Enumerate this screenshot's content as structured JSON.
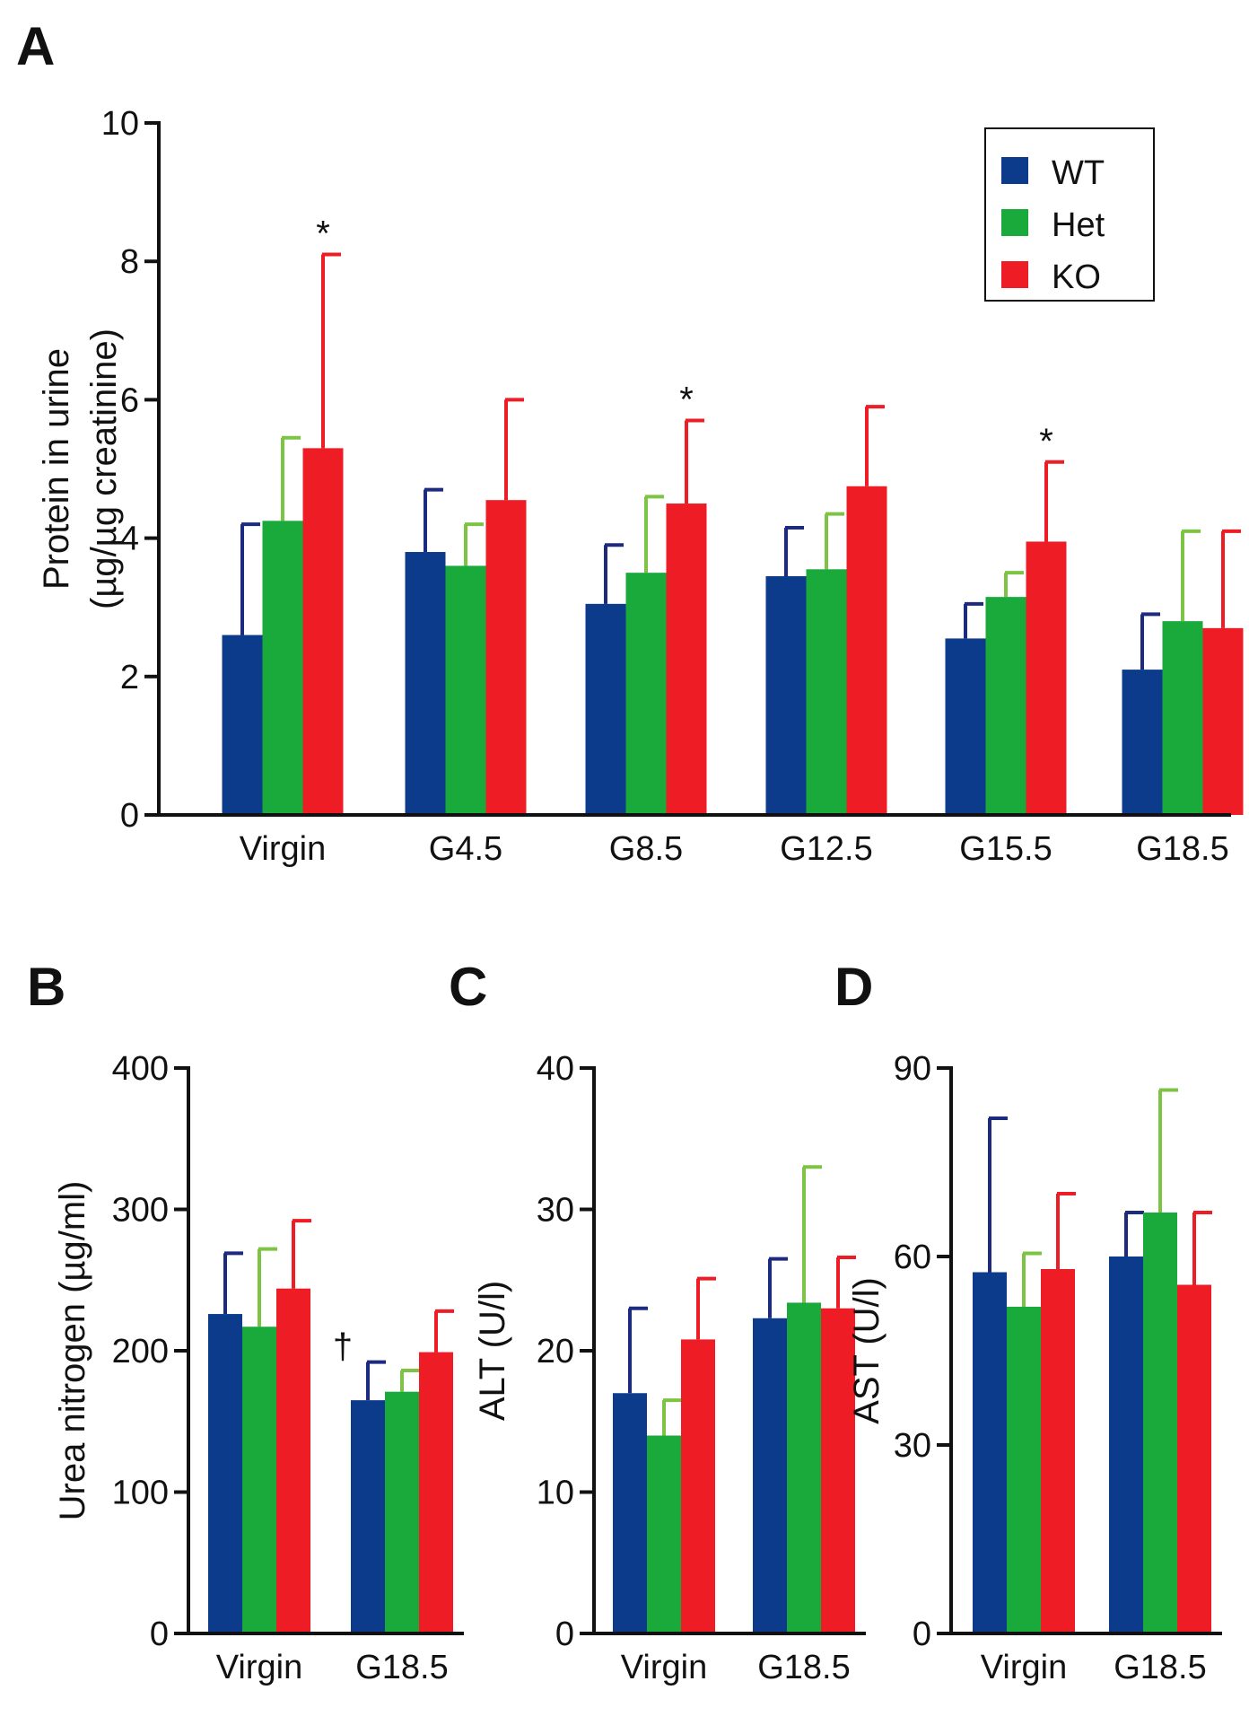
{
  "figure": {
    "colors": {
      "WT": "#0d3b8c",
      "Het": "#1aaa3c",
      "KO": "#ee1c24"
    },
    "errorbar_colors": {
      "WT": "#1c2a80",
      "Het": "#7ec444",
      "KO": "#ee1c24"
    },
    "legend": [
      "WT",
      "Het",
      "KO"
    ]
  },
  "chart_data": [
    {
      "panel": "A",
      "type": "bar",
      "title": "",
      "xlabel": "",
      "ylabel_line1": "Protein in urine",
      "ylabel_line2": "(µg/µg creatinine)",
      "ylim": [
        0,
        10
      ],
      "yticks": [
        "0",
        "2",
        "4",
        "6",
        "8",
        "10"
      ],
      "categories": [
        "Virgin",
        "G4.5",
        "G8.5",
        "G12.5",
        "G15.5",
        "G18.5"
      ],
      "series": [
        {
          "name": "WT",
          "values": [
            2.6,
            3.8,
            3.05,
            3.45,
            2.55,
            2.1
          ],
          "errors": [
            1.6,
            0.9,
            0.85,
            0.7,
            0.5,
            0.8
          ]
        },
        {
          "name": "Het",
          "values": [
            4.25,
            3.6,
            3.5,
            3.55,
            3.15,
            2.8
          ],
          "errors": [
            1.2,
            0.6,
            1.1,
            0.8,
            0.35,
            1.3
          ]
        },
        {
          "name": "KO",
          "values": [
            5.3,
            4.55,
            4.5,
            4.75,
            3.95,
            2.7
          ],
          "errors": [
            2.8,
            1.45,
            1.2,
            1.15,
            1.15,
            1.4
          ]
        }
      ],
      "annotations": [
        {
          "category": "Virgin",
          "series": "KO",
          "text": "*"
        },
        {
          "category": "G8.5",
          "series": "KO",
          "text": "*"
        },
        {
          "category": "G15.5",
          "series": "KO",
          "text": "*"
        }
      ],
      "legend_position": "top-right"
    },
    {
      "panel": "B",
      "type": "bar",
      "ylabel": "Urea nitrogen (µg/ml)",
      "ylim": [
        0,
        400
      ],
      "yticks": [
        "0",
        "100",
        "200",
        "300",
        "400"
      ],
      "categories": [
        "Virgin",
        "G18.5"
      ],
      "series": [
        {
          "name": "WT",
          "values": [
            226,
            165
          ],
          "errors": [
            43,
            27
          ]
        },
        {
          "name": "Het",
          "values": [
            217,
            171
          ],
          "errors": [
            55,
            15
          ]
        },
        {
          "name": "KO",
          "values": [
            244,
            199
          ],
          "errors": [
            48,
            29
          ]
        }
      ],
      "annotations": [
        {
          "category": "G18.5",
          "series": "WT",
          "text": "†"
        }
      ]
    },
    {
      "panel": "C",
      "type": "bar",
      "ylabel": "ALT (U/l)",
      "ylim": [
        0,
        40
      ],
      "yticks": [
        "0",
        "10",
        "20",
        "30",
        "40"
      ],
      "categories": [
        "Virgin",
        "G18.5"
      ],
      "series": [
        {
          "name": "WT",
          "values": [
            17,
            22.3
          ],
          "errors": [
            6,
            4.2
          ]
        },
        {
          "name": "Het",
          "values": [
            14,
            23.4
          ],
          "errors": [
            2.5,
            9.6
          ]
        },
        {
          "name": "KO",
          "values": [
            20.8,
            23
          ],
          "errors": [
            4.3,
            3.6
          ]
        }
      ],
      "annotations": []
    },
    {
      "panel": "D",
      "type": "bar",
      "ylabel": "AST (U/l)",
      "ylim": [
        0,
        90
      ],
      "yticks": [
        "0",
        "30",
        "60",
        "90"
      ],
      "categories": [
        "Virgin",
        "G18.5"
      ],
      "series": [
        {
          "name": "WT",
          "values": [
            57.5,
            60
          ],
          "errors": [
            24.5,
            7
          ]
        },
        {
          "name": "Het",
          "values": [
            52,
            67
          ],
          "errors": [
            8.5,
            19.5
          ]
        },
        {
          "name": "KO",
          "values": [
            58,
            55.5
          ],
          "errors": [
            12,
            11.5
          ]
        }
      ],
      "annotations": []
    }
  ]
}
